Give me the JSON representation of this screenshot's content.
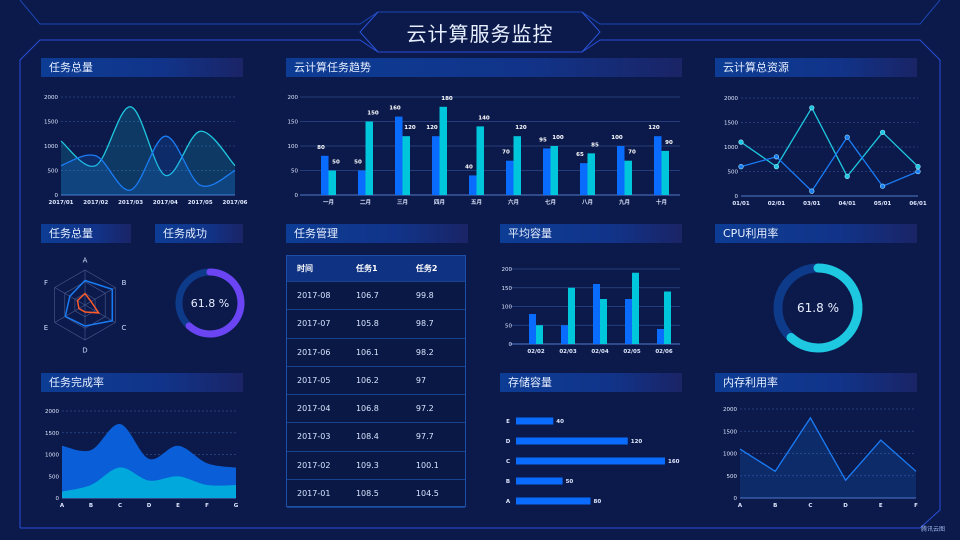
{
  "header": {
    "title": "云计算服务监控"
  },
  "panels": {
    "task_total": "任务总量",
    "cloud_trend": "云计算任务趋势",
    "cloud_resource": "云计算总资源",
    "task_total_radar": "任务总量",
    "task_success": "任务成功",
    "task_manage": "任务管理",
    "avg_capacity": "平均容量",
    "cpu_usage": "CPU利用率",
    "task_completion": "任务完成率",
    "storage": "存储容量",
    "memory": "内存利用率"
  },
  "table": {
    "columns": [
      "时间",
      "任务1",
      "任务2"
    ],
    "rows": [
      [
        "2017-08",
        "106.7",
        "99.8"
      ],
      [
        "2017-07",
        "105.8",
        "98.7"
      ],
      [
        "2017-06",
        "106.1",
        "98.2"
      ],
      [
        "2017-05",
        "106.2",
        "97"
      ],
      [
        "2017-04",
        "106.8",
        "97.2"
      ],
      [
        "2017-03",
        "108.4",
        "97.7"
      ],
      [
        "2017-02",
        "109.3",
        "100.1"
      ],
      [
        "2017-01",
        "108.5",
        "104.5"
      ]
    ]
  },
  "logo": "腾讯云图",
  "colors": {
    "blue": "#0a6cff",
    "cyan": "#00c6dc",
    "orange": "#ff5a2a",
    "purple": "#6b45f4",
    "track": "#0e3a8a",
    "background": "#0c1a4b"
  },
  "chart_data": [
    {
      "id": "task_total",
      "type": "area",
      "smooth": true,
      "categories": [
        "2017/01",
        "2017/02",
        "2017/03",
        "2017/04",
        "2017/05",
        "2017/06"
      ],
      "yticks": [
        "0",
        "500",
        "1000",
        "1500",
        "2000"
      ],
      "ylim": [
        0,
        2000
      ],
      "series": [
        {
          "values": [
            1100,
            600,
            1800,
            400,
            1300,
            600
          ],
          "color": "#1ec8e0"
        },
        {
          "values": [
            600,
            800,
            100,
            1200,
            200,
            500
          ],
          "color": "#1a7cf5"
        }
      ]
    },
    {
      "id": "cloud_trend",
      "type": "bar",
      "categories": [
        "一月",
        "二月",
        "三月",
        "四月",
        "五月",
        "六月",
        "七月",
        "八月",
        "九月",
        "十月"
      ],
      "yticks": [
        "0",
        "50",
        "100",
        "150",
        "200"
      ],
      "ylim": [
        0,
        200
      ],
      "series": [
        {
          "values": [
            80,
            50,
            160,
            120,
            40,
            70,
            95,
            65,
            100,
            120
          ],
          "color": "#0a6cff"
        },
        {
          "values": [
            50,
            150,
            120,
            180,
            140,
            120,
            100,
            85,
            70,
            90
          ],
          "color": "#00c6dc"
        }
      ],
      "data_labels": true
    },
    {
      "id": "cloud_resource",
      "type": "line",
      "categories": [
        "01/01",
        "02/01",
        "03/01",
        "04/01",
        "05/01",
        "06/01"
      ],
      "yticks": [
        "0",
        "500",
        "1000",
        "1500",
        "2000"
      ],
      "ylim": [
        0,
        2000
      ],
      "series": [
        {
          "values": [
            1100,
            600,
            1800,
            400,
            1300,
            600
          ],
          "color": "#1ec8e0"
        },
        {
          "values": [
            600,
            800,
            100,
            1200,
            200,
            500
          ],
          "color": "#1a7cf5"
        }
      ]
    },
    {
      "id": "radar",
      "type": "radar",
      "indicators": [
        "A",
        "B",
        "C",
        "D",
        "E",
        "F"
      ],
      "max": 100,
      "series": [
        {
          "values": [
            70,
            90,
            90,
            60,
            65,
            50
          ],
          "color": "#1a7cf5"
        },
        {
          "values": [
            33,
            20,
            45,
            20,
            20,
            25
          ],
          "color": "#ff5a2a"
        }
      ]
    },
    {
      "id": "task_success",
      "type": "gauge",
      "value": 61.8,
      "label": "61.8 %",
      "color": "#6b45f4"
    },
    {
      "id": "avg_capacity",
      "type": "bar",
      "categories": [
        "02/02",
        "02/03",
        "02/04",
        "02/05",
        "02/06"
      ],
      "yticks": [
        "0",
        "50",
        "100",
        "150",
        "200"
      ],
      "ylim": [
        0,
        200
      ],
      "series": [
        {
          "values": [
            80,
            50,
            160,
            120,
            40
          ],
          "color": "#0a6cff"
        },
        {
          "values": [
            50,
            150,
            120,
            190,
            140
          ],
          "color": "#00c6dc"
        }
      ]
    },
    {
      "id": "cpu_usage",
      "type": "gauge",
      "value": 61.8,
      "label": "61.8 %",
      "color": "#1ec8e0"
    },
    {
      "id": "task_completion",
      "type": "area",
      "stacked": true,
      "smooth": true,
      "categories": [
        "A",
        "B",
        "C",
        "D",
        "E",
        "F",
        "G"
      ],
      "yticks": [
        "0",
        "500",
        "1000",
        "1500",
        "2000"
      ],
      "ylim": [
        0,
        2000
      ],
      "series": [
        {
          "values": [
            150,
            300,
            700,
            400,
            500,
            300,
            300
          ],
          "color": "#00a8dc"
        },
        {
          "values": [
            1050,
            800,
            1000,
            500,
            700,
            500,
            400
          ],
          "color": "#0a5fd8"
        }
      ]
    },
    {
      "id": "storage",
      "type": "hbar",
      "categories": [
        "A",
        "B",
        "C",
        "D",
        "E"
      ],
      "values": [
        80,
        50,
        160,
        120,
        40
      ],
      "xlim": [
        0,
        160
      ],
      "color": "#0a6cff"
    },
    {
      "id": "memory",
      "type": "area",
      "categories": [
        "A",
        "B",
        "C",
        "D",
        "E",
        "F"
      ],
      "yticks": [
        "0",
        "500",
        "1000",
        "1500",
        "2000"
      ],
      "ylim": [
        0,
        2000
      ],
      "series": [
        {
          "values": [
            1100,
            600,
            1800,
            400,
            1300,
            600
          ],
          "color": "#1a7cf5"
        }
      ]
    }
  ]
}
